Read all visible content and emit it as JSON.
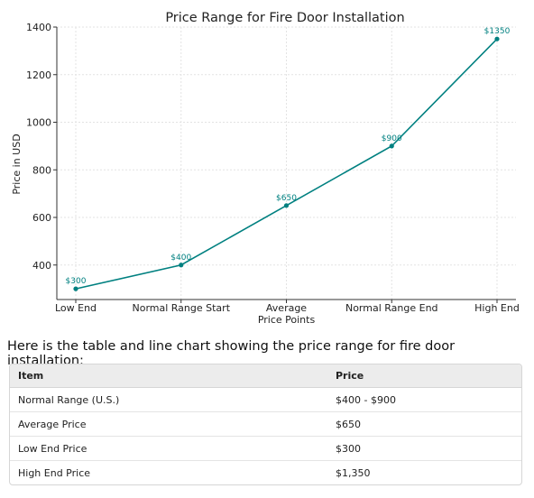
{
  "chart_data": {
    "type": "line",
    "title": "Price Range for Fire Door Installation",
    "xlabel": "",
    "ylabel": "Price in USD",
    "categories": [
      "Low End",
      "Normal Range Start",
      "Average\nPrice Points",
      "Normal Range End",
      "High End"
    ],
    "series": [
      {
        "values": [
          300,
          400,
          650,
          900,
          1350
        ],
        "color": "#008080"
      }
    ],
    "data_labels": [
      "$300",
      "$400",
      "$650",
      "$900",
      "$1350"
    ],
    "yticks": [
      400,
      600,
      800,
      1000,
      1200,
      1400
    ],
    "ylim": [
      255,
      1400
    ],
    "grid": true,
    "legend": "none"
  },
  "caption": "Here is the table and line chart showing the price range for fire door installation:",
  "table": {
    "headers": [
      "Item",
      "Price"
    ],
    "rows": [
      [
        "Normal Range (U.S.)",
        "$400 - $900"
      ],
      [
        "Average Price",
        "$650"
      ],
      [
        "Low End Price",
        "$300"
      ],
      [
        "High End Price",
        "$1,350"
      ]
    ]
  }
}
